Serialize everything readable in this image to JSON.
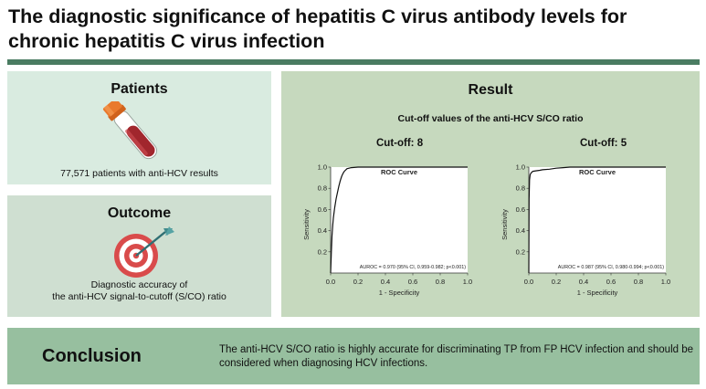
{
  "header": {
    "title": "The diagnostic significance of hepatitis C virus antibody levels for chronic hepatitis C virus infection"
  },
  "patients": {
    "heading": "Patients",
    "icon": "blood-tube-icon",
    "text": "77,571 patients with anti-HCV results"
  },
  "outcome": {
    "heading": "Outcome",
    "icon": "target-arrow-icon",
    "text_line1": "Diagnostic accuracy of",
    "text_line2": "the anti-HCV signal-to-cutoff (S/CO) ratio"
  },
  "result": {
    "heading": "Result",
    "subheading": "Cut-off values of the anti-HCV S/CO ratio"
  },
  "conclusion": {
    "label": "Conclusion",
    "text": "The anti-HCV S/CO ratio is highly accurate for discriminating TP from FP HCV infection and should be considered when diagnosing HCV infections."
  },
  "colors": {
    "title_bar": "#4a7c62",
    "patients_bg": "#d9ebe0",
    "outcome_bg": "#cfdfd1",
    "result_bg": "#c6d9be",
    "conclusion_bg": "#97bf9f",
    "target_red": "#d94b4b",
    "arrow_teal": "#3f8a8c"
  },
  "chart_data": [
    {
      "type": "line",
      "cutoff_label": "Cut-off: 8",
      "title": "ROC Curve",
      "xlabel": "1 - Specificity",
      "ylabel": "Sensitivity",
      "xlim": [
        0,
        1
      ],
      "ylim": [
        0,
        1
      ],
      "xticks": [
        "0.0",
        "0.2",
        "0.4",
        "0.6",
        "0.8",
        "1.0"
      ],
      "yticks": [
        "0.2",
        "0.4",
        "0.6",
        "0.8",
        "1.0"
      ],
      "annotation": "AUROC = 0.970 (95% CI, 0.959-0.982; p<0.001)",
      "series": [
        {
          "x": [
            0,
            0.005,
            0.01,
            0.015,
            0.02,
            0.03,
            0.04,
            0.05,
            0.06,
            0.07,
            0.08,
            0.09,
            0.1,
            0.12,
            0.15,
            0.2,
            0.3,
            0.5,
            0.8,
            1.0
          ],
          "y": [
            0,
            0.2,
            0.35,
            0.45,
            0.52,
            0.62,
            0.7,
            0.76,
            0.82,
            0.87,
            0.91,
            0.94,
            0.96,
            0.985,
            0.995,
            1.0,
            1.0,
            1.0,
            1.0,
            1.0
          ]
        }
      ]
    },
    {
      "type": "line",
      "cutoff_label": "Cut-off: 5",
      "title": "ROC Curve",
      "xlabel": "1 - Specificity",
      "ylabel": "Sensitivity",
      "xlim": [
        0,
        1
      ],
      "ylim": [
        0,
        1
      ],
      "xticks": [
        "0.0",
        "0.2",
        "0.4",
        "0.6",
        "0.8",
        "1.0"
      ],
      "yticks": [
        "0.2",
        "0.4",
        "0.6",
        "0.8",
        "1.0"
      ],
      "annotation": "AUROC = 0.987 (95% CI, 0.980-0.994; p<0.001)",
      "series": [
        {
          "x": [
            0,
            0.002,
            0.005,
            0.01,
            0.02,
            0.03,
            0.05,
            0.08,
            0.1,
            0.15,
            0.2,
            0.25,
            0.3,
            0.4,
            0.5,
            0.6,
            0.8,
            1.0
          ],
          "y": [
            0,
            0.7,
            0.88,
            0.93,
            0.95,
            0.96,
            0.965,
            0.97,
            0.975,
            0.98,
            0.99,
            0.995,
            1.0,
            1.0,
            1.0,
            1.0,
            1.0,
            1.0
          ]
        }
      ]
    }
  ]
}
